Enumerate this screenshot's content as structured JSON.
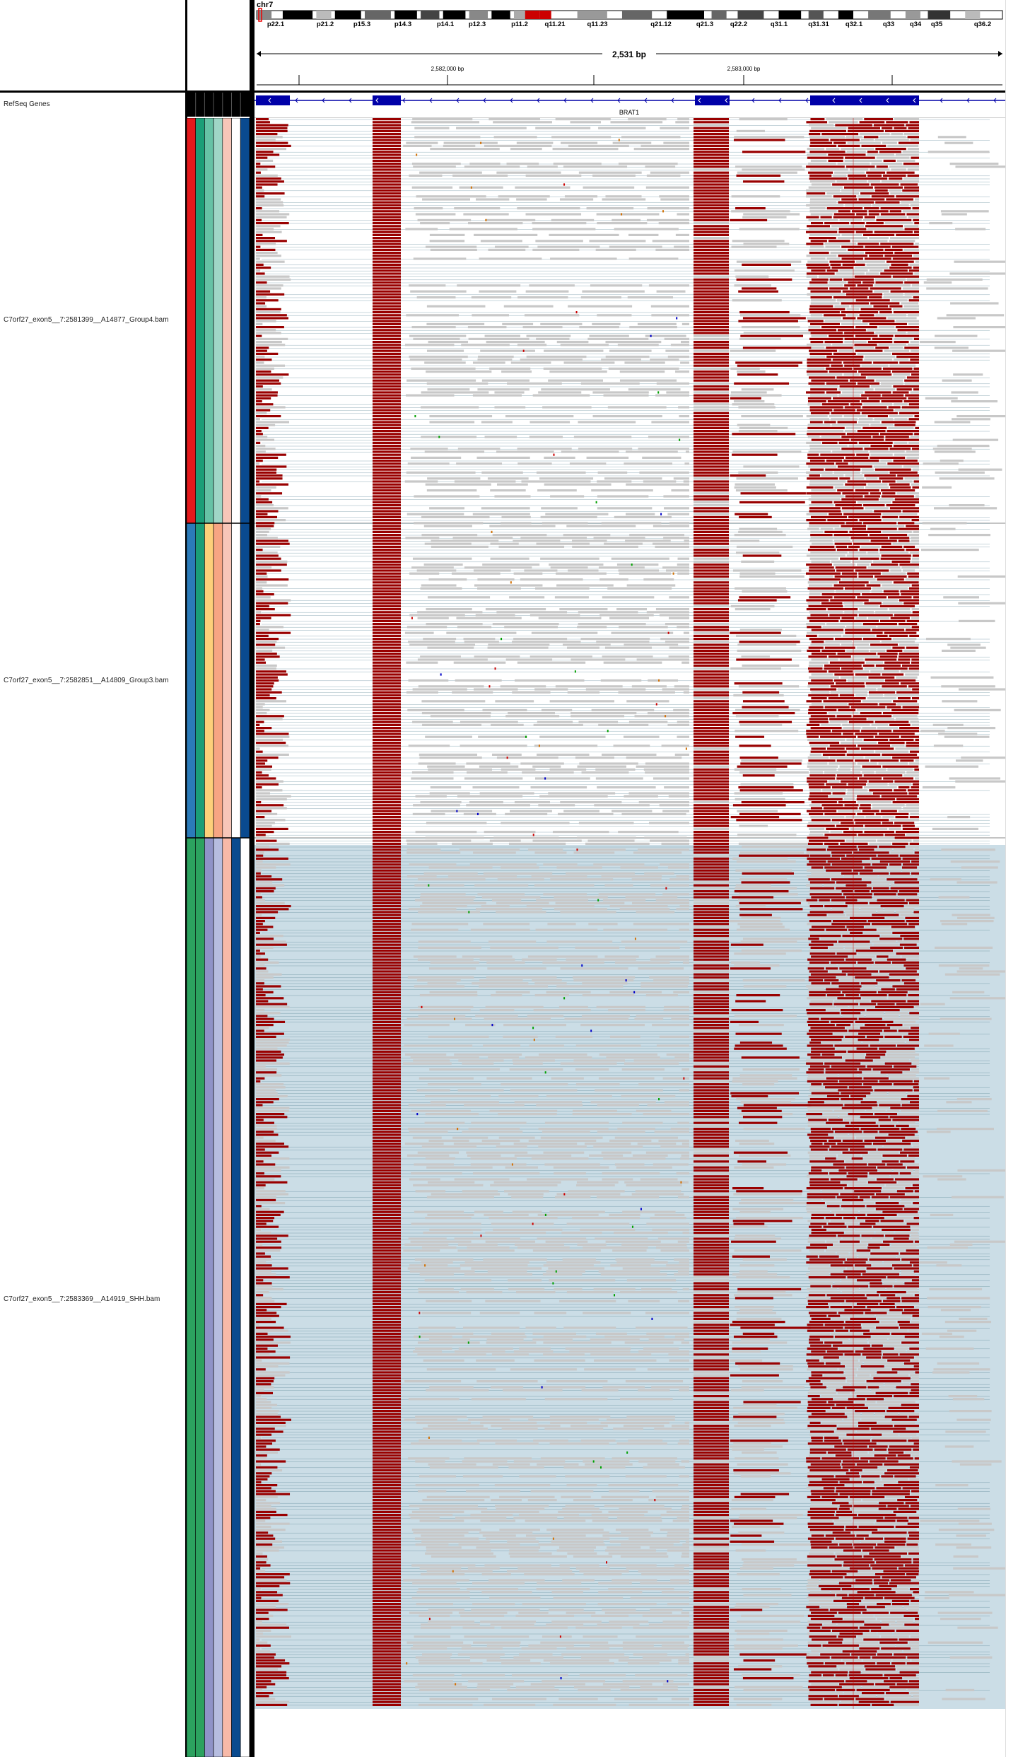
{
  "header": {
    "chromosome": "chr7",
    "cytobands": [
      "p22.1",
      "p21.2",
      "p15.3",
      "p14.3",
      "p14.1",
      "p12.3",
      "p11.2",
      "q11.21",
      "q11.23",
      "q21.12",
      "q21.3",
      "q22.2",
      "q31.1",
      "q31.31",
      "q32.1",
      "q33",
      "q34",
      "q35",
      "q36.2"
    ],
    "span_label": "2,531 bp",
    "ticks": [
      "2,582,000 bp",
      "2,583,000 bp"
    ]
  },
  "gene_track": {
    "track_name": "RefSeq Genes",
    "gene_name": "BRAT1"
  },
  "tracks": [
    {
      "name": "C7orf27_exon5__7:2581399__A14877_Group4.bam",
      "attr_colors": [
        "#e41a1c",
        "#1b9e77",
        "#66c2a5",
        "#9fd6c6",
        "#f7c6b8",
        "#ffffff",
        "#0a4a8f"
      ]
    },
    {
      "name": "C7orf27_exon5__7:2582851__A14809_Group3.bam",
      "attr_colors": [
        "#2b7bb9",
        "#1b9e77",
        "#fdd07a",
        "#f7a583",
        "#f7c6b8",
        "#ffffff",
        "#0a4a8f"
      ]
    },
    {
      "name": "C7orf27_exon5__7:2583369__A14919_SHH.bam",
      "attr_colors": [
        "#2ca25f",
        "#2ca25f",
        "#8f93c8",
        "#b6bde0",
        "#f7b9a8",
        "#0a4a8f",
        "#ffffff"
      ]
    }
  ],
  "colors": {
    "read": "#c8c8c8",
    "clipped": "#990000",
    "insert_line": "#4a7a8c",
    "shaded_bg": "#cbdde6",
    "gene": "#0000a8"
  }
}
